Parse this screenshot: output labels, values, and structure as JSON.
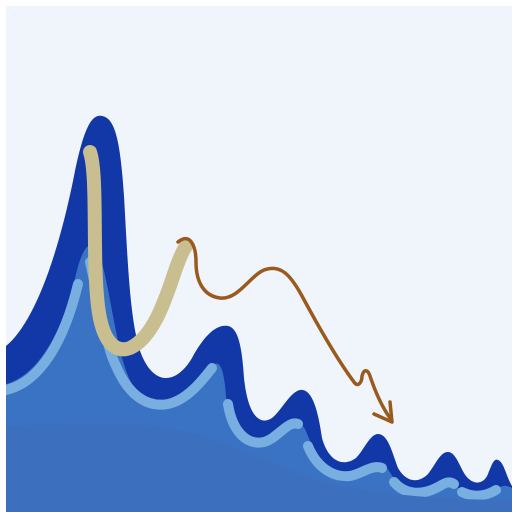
{
  "colors": {
    "background": "#eff5fb",
    "frame": "#ffffff",
    "wave_dark_blue": "#1237a6",
    "wave_mid_blue": "#3b73c4",
    "wave_light_blue": "#79aee0",
    "base_blue": "#3c70bf",
    "beige_stroke": "#c9be90",
    "brown_arrow": "#9a5a1d"
  },
  "icons": {
    "arrow": "arrow-down-right-icon"
  }
}
